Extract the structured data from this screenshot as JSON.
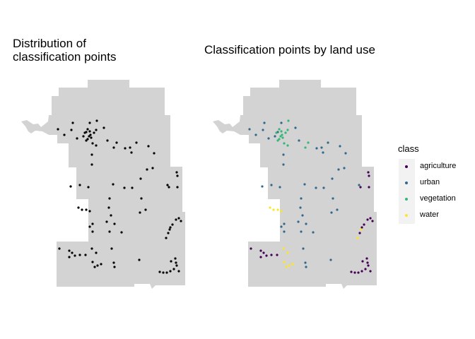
{
  "panels": {
    "left_title": "Distribution of\nclassification points",
    "right_title": "Classification points by land use"
  },
  "legend": {
    "title": "class",
    "items": [
      {
        "label": "agriculture",
        "color": "#440154"
      },
      {
        "label": "urban",
        "color": "#31688e"
      },
      {
        "label": "vegetation",
        "color": "#35b779"
      },
      {
        "label": "water",
        "color": "#fde725"
      }
    ]
  },
  "map": {
    "fill": "#d3d3d3",
    "left_point_color": "#000000"
  },
  "chart_data": {
    "type": "scatter",
    "series": [
      {
        "name": "agriculture",
        "color": "#440154",
        "points": [
          [
            250,
            244
          ],
          [
            251,
            249
          ],
          [
            251,
            265
          ],
          [
            239,
            265
          ],
          [
            238,
            330
          ],
          [
            241,
            322
          ],
          [
            244,
            318
          ],
          [
            249,
            311
          ],
          [
            253,
            309
          ],
          [
            256,
            313
          ],
          [
            84,
            352
          ],
          [
            98,
            355
          ],
          [
            102,
            358
          ],
          [
            98,
            364
          ],
          [
            106,
            362
          ],
          [
            113,
            361
          ],
          [
            121,
            361
          ],
          [
            226,
            385
          ],
          [
            231,
            386
          ],
          [
            236,
            386
          ],
          [
            241,
            384
          ],
          [
            246,
            381
          ],
          [
            250,
            376
          ],
          [
            253,
            384
          ],
          [
            242,
            370
          ],
          [
            248,
            366
          ],
          [
            249,
            372
          ]
        ]
      },
      {
        "name": "urban",
        "color": "#31688e",
        "points": [
          [
            82,
            183
          ],
          [
            91,
            191
          ],
          [
            103,
            174
          ],
          [
            101,
            184
          ],
          [
            109,
            196
          ],
          [
            118,
            193
          ],
          [
            122,
            187
          ],
          [
            127,
            174
          ],
          [
            147,
            181
          ],
          [
            152,
            199
          ],
          [
            130,
            219
          ],
          [
            130,
            233
          ],
          [
            177,
            210
          ],
          [
            184,
            209
          ],
          [
            186,
            216
          ],
          [
            193,
            202
          ],
          [
            210,
            207
          ],
          [
            218,
            217
          ],
          [
            208,
            240
          ],
          [
            216,
            238
          ],
          [
            199,
            253
          ],
          [
            187,
            266
          ],
          [
            176,
            266
          ],
          [
            160,
            261
          ],
          [
            155,
            281
          ],
          [
            154,
            294
          ],
          [
            157,
            305
          ],
          [
            162,
            317
          ],
          [
            151,
            314
          ],
          [
            172,
            329
          ],
          [
            131,
            317
          ],
          [
            127,
            321
          ],
          [
            131,
            328
          ],
          [
            155,
            328
          ],
          [
            200,
            281
          ],
          [
            198,
            301
          ],
          [
            206,
            297
          ],
          [
            237,
            262
          ],
          [
            113,
            262
          ],
          [
            125,
            265
          ],
          [
            100,
            264
          ],
          [
            158,
            352
          ],
          [
            161,
            372
          ],
          [
            162,
            378
          ],
          [
            197,
            368
          ]
        ]
      },
      {
        "name": "vegetation",
        "color": "#35b779",
        "points": [
          [
            120,
            188
          ],
          [
            124,
            183
          ],
          [
            127,
            186
          ],
          [
            128,
            191
          ],
          [
            124,
            197
          ],
          [
            129,
            195
          ],
          [
            133,
            188
          ],
          [
            126,
            193
          ],
          [
            136,
            184
          ],
          [
            137,
            171
          ],
          [
            122,
            199
          ],
          [
            131,
            203
          ],
          [
            136,
            206
          ],
          [
            161,
            209
          ],
          [
            165,
            202
          ]
        ]
      },
      {
        "name": "water",
        "color": "#fde725",
        "points": [
          [
            111,
            294
          ],
          [
            116,
            297
          ],
          [
            122,
            297
          ],
          [
            127,
            299
          ],
          [
            235,
            337
          ],
          [
            240,
            325
          ],
          [
            130,
            352
          ],
          [
            136,
            358
          ],
          [
            138,
            376
          ],
          [
            131,
            371
          ],
          [
            134,
            378
          ],
          [
            143,
            374
          ]
        ]
      }
    ]
  }
}
